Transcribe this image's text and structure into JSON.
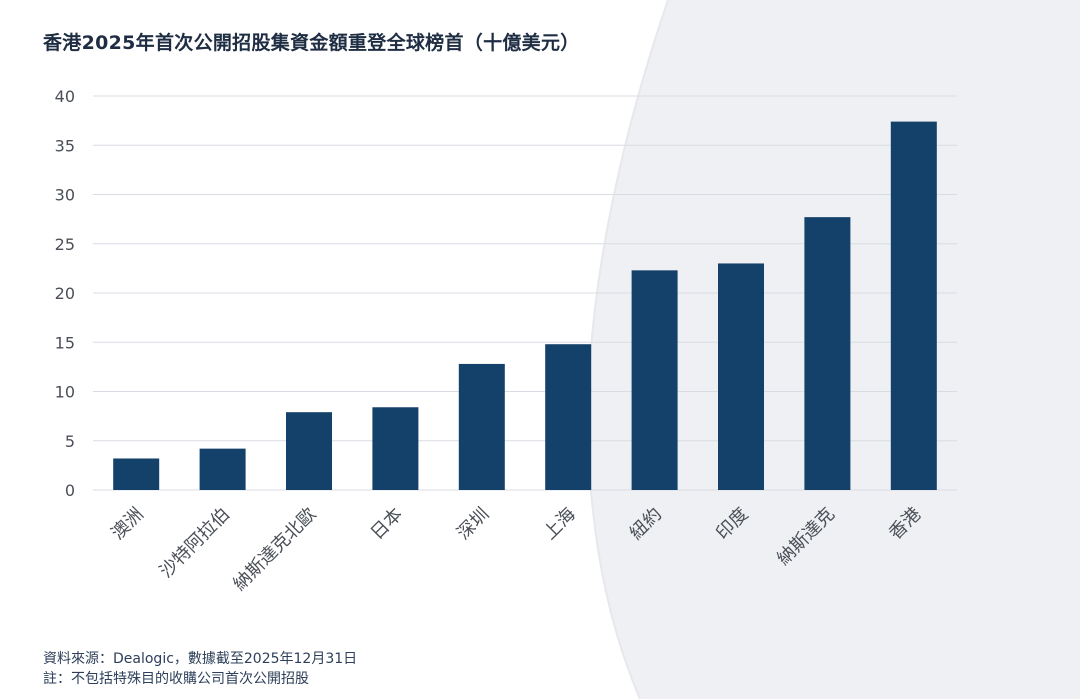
{
  "colors": {
    "bar": "#13416a",
    "grid": "#d9dde3",
    "axis_text": "#4a4f57",
    "title": "#1f2d43",
    "background_shape": "#eef0f3"
  },
  "chart_data": {
    "type": "bar",
    "title": "香港2025年首次公開招股集資金額重登全球榜首（十億美元）",
    "categories": [
      "澳洲",
      "沙特阿拉伯",
      "納斯達克北歐",
      "日本",
      "深圳",
      "上海",
      "紐約",
      "印度",
      "納斯達克",
      "香港"
    ],
    "values": [
      3.2,
      4.2,
      7.9,
      8.4,
      12.8,
      14.8,
      22.3,
      23.0,
      27.7,
      37.4
    ],
    "yticks": [
      "0",
      "5",
      "10",
      "15",
      "20",
      "25",
      "30",
      "35",
      "40"
    ],
    "ylim": [
      0,
      40
    ],
    "xlabel": "",
    "ylabel": "",
    "grid": true
  },
  "notes": {
    "source": "資料來源：Dealogic，數據截至2025年12月31日",
    "footnote": "註：不包括特殊目的收購公司首次公開招股"
  }
}
